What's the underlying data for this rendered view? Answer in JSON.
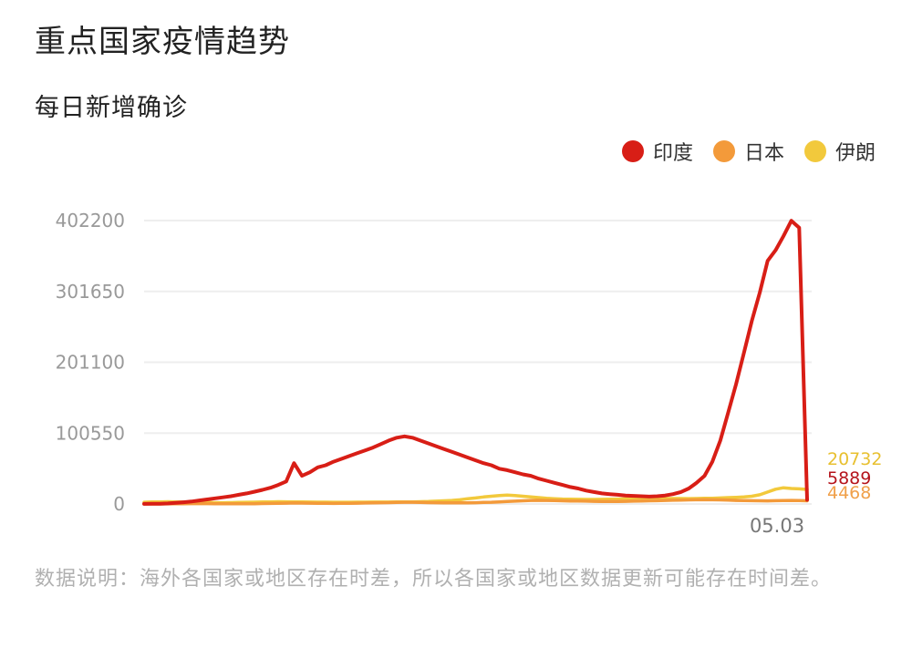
{
  "header": {
    "title": "重点国家疫情趋势"
  },
  "footnote": {
    "text": "数据说明：海外各国家或地区存在时差，所以各国家或地区数据更新可能存在时间差。"
  },
  "chart_data": {
    "type": "line",
    "title": "每日新增确诊",
    "ylim": [
      0,
      402200
    ],
    "y_ticks": [
      "402200",
      "301650",
      "201100",
      "100550",
      "0"
    ],
    "y_tick_values": [
      402200,
      301650,
      201100,
      100550,
      0
    ],
    "x_tick_label": "05.03",
    "legend_position": "top-right",
    "grid": true,
    "series": [
      {
        "name": "印度",
        "color": "#d81e16",
        "end_label": "5889",
        "label_color": "#b5141c",
        "values": [
          100,
          200,
          400,
          800,
          1500,
          2500,
          3500,
          5000,
          6500,
          8000,
          9500,
          11000,
          13000,
          15000,
          17500,
          20000,
          23000,
          27000,
          32000,
          58000,
          40000,
          45000,
          52000,
          55000,
          60000,
          64000,
          68000,
          72000,
          76000,
          80000,
          85000,
          90000,
          94000,
          96000,
          94000,
          90000,
          86000,
          82000,
          78000,
          74000,
          70000,
          66000,
          62000,
          58000,
          55000,
          50000,
          48000,
          45000,
          42000,
          40000,
          36000,
          33000,
          30000,
          27000,
          24000,
          22000,
          19000,
          17000,
          15000,
          14000,
          13000,
          12000,
          11500,
          11000,
          10500,
          11000,
          12000,
          14000,
          17000,
          22000,
          30000,
          40000,
          60000,
          90000,
          130000,
          170000,
          215000,
          260000,
          300000,
          345000,
          360000,
          380000,
          402000,
          392000,
          5889
        ]
      },
      {
        "name": "日本",
        "color": "#f39a3a",
        "end_label": "4468",
        "label_color": "#f0a04a",
        "values": [
          0,
          0,
          50,
          100,
          200,
          300,
          500,
          600,
          500,
          400,
          300,
          200,
          200,
          300,
          400,
          600,
          800,
          1000,
          1200,
          1400,
          1300,
          1200,
          1000,
          900,
          800,
          900,
          1000,
          1200,
          1400,
          1600,
          1800,
          2000,
          2300,
          2500,
          2400,
          2200,
          2000,
          1800,
          1600,
          1500,
          1500,
          1600,
          1800,
          2200,
          2500,
          3000,
          3500,
          4000,
          4500,
          5000,
          5200,
          5000,
          4800,
          4500,
          4300,
          4200,
          4000,
          3800,
          3600,
          3500,
          3600,
          3800,
          4000,
          4200,
          4500,
          4700,
          5000,
          5300,
          5500,
          5800,
          6000,
          6200,
          6000,
          5800,
          5500,
          5000,
          4800,
          4600,
          4500,
          4400,
          4600,
          4800,
          5000,
          4800,
          4468
        ]
      },
      {
        "name": "伊朗",
        "color": "#f2c93c",
        "end_label": "20732",
        "label_color": "#e8c030",
        "values": [
          2500,
          2800,
          3000,
          3200,
          3000,
          2800,
          2600,
          2400,
          2200,
          2000,
          1800,
          2000,
          2200,
          2400,
          2600,
          2800,
          3000,
          3200,
          3100,
          3000,
          2800,
          2700,
          2600,
          2600,
          2500,
          2500,
          2500,
          2600,
          2600,
          2700,
          2700,
          2700,
          2800,
          2800,
          3000,
          3200,
          3500,
          4000,
          4500,
          5000,
          6000,
          7500,
          8500,
          10000,
          11000,
          12000,
          12500,
          12000,
          11000,
          10000,
          9000,
          8000,
          7500,
          7000,
          6800,
          6600,
          6500,
          6500,
          6600,
          6800,
          7000,
          7200,
          7400,
          7600,
          7800,
          7800,
          7800,
          7800,
          7700,
          7600,
          7800,
          8000,
          8200,
          8500,
          9000,
          9500,
          10000,
          11000,
          13000,
          17000,
          21000,
          23000,
          22000,
          21500,
          20732
        ]
      }
    ]
  }
}
